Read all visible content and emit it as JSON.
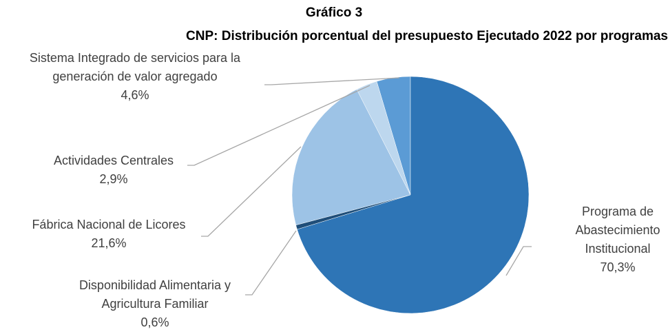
{
  "chart_data": {
    "type": "pie",
    "title": "Gráfico 3",
    "subtitle": "CNP: Distribución porcentual del presupuesto Ejecutado 2022 por programas",
    "categories": [
      "Programa de Abastecimiento Institucional",
      "Disponibilidad Alimentaria y Agricultura Familiar",
      "Fábrica Nacional de Licores",
      "Actividades Centrales",
      "Sistema Integrado de servicios para la generación de valor agregado"
    ],
    "values": [
      70.3,
      0.6,
      21.6,
      2.9,
      4.6
    ],
    "value_labels": [
      "70,3%",
      "0,6%",
      "21,6%",
      "2,9%",
      "4,6%"
    ],
    "colors": [
      "#2e75b6",
      "#1f4e79",
      "#9dc3e6",
      "#bdd7ee",
      "#5b9bd5"
    ]
  }
}
